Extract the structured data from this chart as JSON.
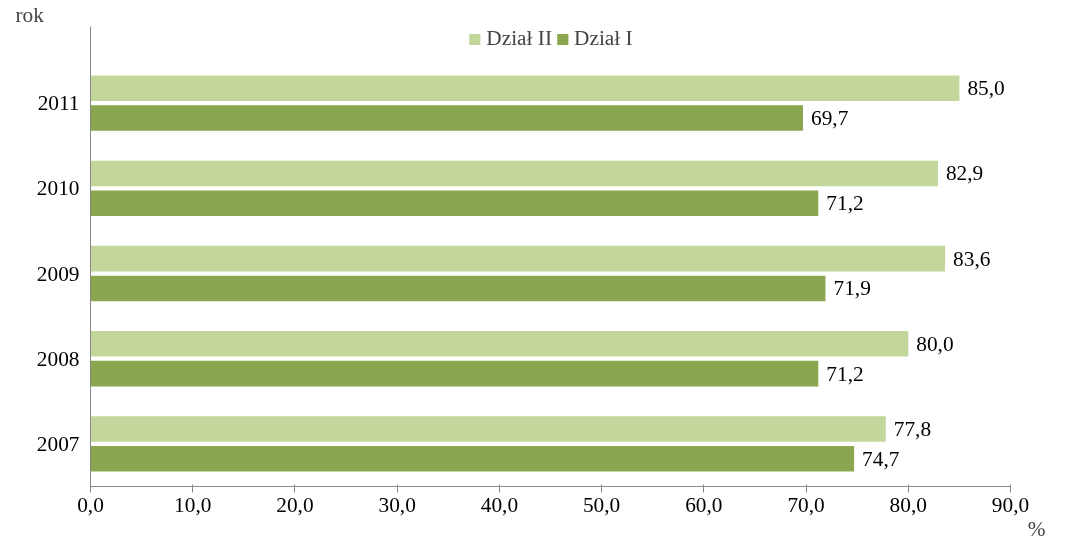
{
  "chart_data": {
    "type": "bar",
    "orientation": "horizontal",
    "categories": [
      "2011",
      "2010",
      "2009",
      "2008",
      "2007"
    ],
    "series": [
      {
        "name": "Dział II",
        "color": "#c3d69b",
        "values": [
          85.0,
          82.9,
          83.6,
          80.0,
          77.8
        ],
        "value_labels": [
          "85,0",
          "82,9",
          "83,6",
          "80,0",
          "77,8"
        ]
      },
      {
        "name": "Dział I",
        "color": "#8aa64f",
        "values": [
          69.7,
          71.2,
          71.9,
          71.2,
          74.7
        ],
        "value_labels": [
          "69,7",
          "71,2",
          "71,9",
          "71,2",
          "74,7"
        ]
      }
    ],
    "xlim": [
      0,
      90
    ],
    "xticks": [
      {
        "value": 0,
        "label": "0,0"
      },
      {
        "value": 10,
        "label": "10,0"
      },
      {
        "value": 20,
        "label": "20,0"
      },
      {
        "value": 30,
        "label": "30,0"
      },
      {
        "value": 40,
        "label": "40,0"
      },
      {
        "value": 50,
        "label": "50,0"
      },
      {
        "value": 60,
        "label": "60,0"
      },
      {
        "value": 70,
        "label": "70,0"
      },
      {
        "value": 80,
        "label": "80,0"
      },
      {
        "value": 90,
        "label": "90,0"
      }
    ],
    "ylabel": "rok",
    "xlabel": "%",
    "legend": "top"
  }
}
